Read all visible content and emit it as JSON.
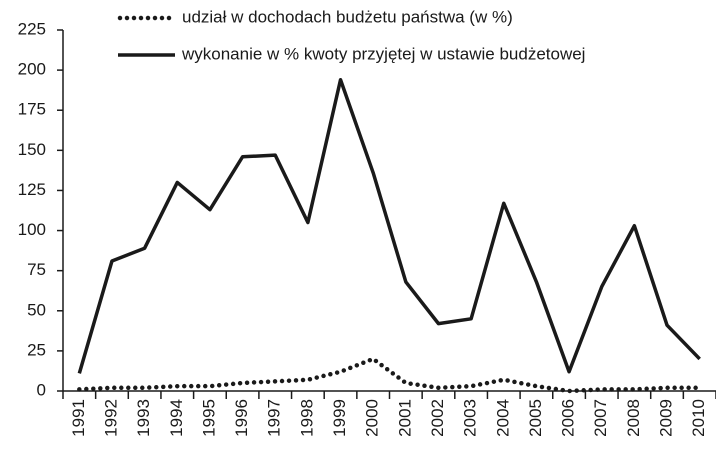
{
  "chart_data": {
    "type": "line",
    "categories": [
      "1991",
      "1992",
      "1993",
      "1994",
      "1995",
      "1996",
      "1997",
      "1998",
      "1999",
      "2000",
      "2001",
      "2002",
      "2003",
      "2004",
      "2005",
      "2006",
      "2007",
      "2008",
      "2009",
      "2010"
    ],
    "series": [
      {
        "name": "udział  w dochodach  budżetu państwa (w %)",
        "color": "#1a1a1a",
        "style": "dotted",
        "values": [
          1,
          2,
          2,
          3,
          3,
          5,
          6,
          7,
          12,
          20,
          5,
          2,
          3,
          7,
          3,
          0,
          1,
          1,
          2,
          2
        ]
      },
      {
        "name": "wykonanie w % kwoty przyjętej w ustawie budżetowej",
        "color": "#1a1a1a",
        "style": "solid",
        "values": [
          11,
          81,
          89,
          130,
          113,
          146,
          147,
          105,
          194,
          136,
          68,
          42,
          45,
          117,
          68,
          12,
          65,
          103,
          41,
          20
        ]
      }
    ],
    "ylim": [
      0,
      225
    ],
    "yticks": [
      0,
      25,
      50,
      75,
      100,
      125,
      150,
      175,
      200,
      225
    ],
    "grid": false,
    "legend": "top"
  }
}
